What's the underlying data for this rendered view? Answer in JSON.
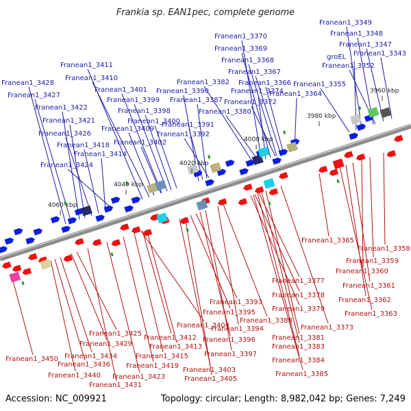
{
  "title": "Frankia sp. EAN1pec, complete genome",
  "footer": {
    "accession": "Accession: NC_009921",
    "summary": "Topology: circular; Length: 8,982,042 bp; Genes: 7,249"
  },
  "colors": {
    "top_label": "#1a1aa8",
    "bottom_label": "#b01010",
    "forward_gene": "#0a1fe0",
    "reverse_gene": "#ee1111",
    "backbone": "#8c8c8c"
  },
  "kbp_ticks": [
    {
      "label": "3960 kbp"
    },
    {
      "label": "3980 kbp"
    },
    {
      "label": "4000 kbp"
    },
    {
      "label": "4020 kbp"
    },
    {
      "label": "4040 kbp"
    },
    {
      "label": "4060 kbp"
    }
  ],
  "top_labels": [
    {
      "text": "Franean1_3349"
    },
    {
      "text": "Franean1_3348"
    },
    {
      "text": "Franean1_3347"
    },
    {
      "text": "Franean1_3343"
    },
    {
      "text": "groEL"
    },
    {
      "text": "Franean1_3352"
    },
    {
      "text": "Franean1_3355"
    },
    {
      "text": "Franean1_3370"
    },
    {
      "text": "Franean1_3369"
    },
    {
      "text": "Franean1_3368"
    },
    {
      "text": "Franean1_3367"
    },
    {
      "text": "Franean1_3366"
    },
    {
      "text": "Franean1_3364"
    },
    {
      "text": "Franean1_3382"
    },
    {
      "text": "Franean1_3374"
    },
    {
      "text": "Franean1_3390"
    },
    {
      "text": "Franean1_3387"
    },
    {
      "text": "Franean1_3372"
    },
    {
      "text": "Franean1_3380"
    },
    {
      "text": "Franean1_3411"
    },
    {
      "text": "Franean1_3410"
    },
    {
      "text": "Franean1_3401"
    },
    {
      "text": "Franean1_3399"
    },
    {
      "text": "Franean1_3398"
    },
    {
      "text": "Franean1_3400"
    },
    {
      "text": "Franean1_3409"
    },
    {
      "text": "Franean1_3402"
    },
    {
      "text": "Franean1_3391"
    },
    {
      "text": "Franean1_3392"
    },
    {
      "text": "Franean1_3428"
    },
    {
      "text": "Franean1_3427"
    },
    {
      "text": "Franean1_3422"
    },
    {
      "text": "Franean1_3421"
    },
    {
      "text": "Franean1_3426"
    },
    {
      "text": "Franean1_3418"
    },
    {
      "text": "Franean1_3414"
    },
    {
      "text": "Franean1_3424"
    }
  ],
  "bottom_labels": [
    {
      "text": "Franean1_3365"
    },
    {
      "text": "Franean1_3358"
    },
    {
      "text": "Franean1_3359"
    },
    {
      "text": "Franean1_3360"
    },
    {
      "text": "Franean1_3361"
    },
    {
      "text": "Franean1_3362"
    },
    {
      "text": "Franean1_3363"
    },
    {
      "text": "Franean1_3377"
    },
    {
      "text": "Franean1_3378"
    },
    {
      "text": "Franean1_3379"
    },
    {
      "text": "Franean1_3373"
    },
    {
      "text": "Franean1_3381"
    },
    {
      "text": "Franean1_3383"
    },
    {
      "text": "Franean1_3384"
    },
    {
      "text": "Franean1_3385"
    },
    {
      "text": "Franean1_3393"
    },
    {
      "text": "Franean1_3395"
    },
    {
      "text": "Franean1_3388"
    },
    {
      "text": "Franean1_3394"
    },
    {
      "text": "Franean1_3396"
    },
    {
      "text": "Franean1_3397"
    },
    {
      "text": "Franean1_3404"
    },
    {
      "text": "Franean1_3412"
    },
    {
      "text": "Franean1_3413"
    },
    {
      "text": "Franean1_3415"
    },
    {
      "text": "Franean1_3403"
    },
    {
      "text": "Franean1_3405"
    },
    {
      "text": "Franean1_3425"
    },
    {
      "text": "Franean1_3429"
    },
    {
      "text": "Franean1_3434"
    },
    {
      "text": "Franean1_3436"
    },
    {
      "text": "Franean1_3419"
    },
    {
      "text": "Franean1_3423"
    },
    {
      "text": "Franean1_3440"
    },
    {
      "text": "Franean1_3431"
    },
    {
      "text": "Franean1_3450"
    }
  ]
}
